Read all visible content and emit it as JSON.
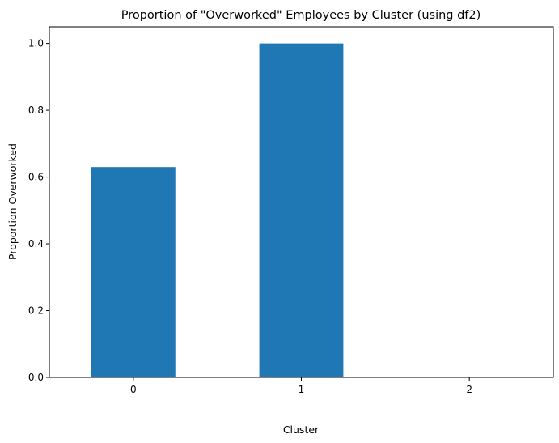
{
  "chart_data": {
    "type": "bar",
    "title": "Proportion of \"Overworked\" Employees by Cluster (using df2)",
    "xlabel": "Cluster",
    "ylabel": "Proportion Overworked",
    "categories": [
      "0",
      "1",
      "2"
    ],
    "values": [
      0.63,
      1.0,
      0.0
    ],
    "ylim": [
      0,
      1.05
    ],
    "yticks": [
      0.0,
      0.2,
      0.4,
      0.6,
      0.8,
      1.0
    ],
    "ytick_labels": [
      "0.0",
      "0.2",
      "0.4",
      "0.6",
      "0.8",
      "1.0"
    ],
    "grid": false,
    "legend": "none",
    "bar_color": "#1f77b4"
  }
}
